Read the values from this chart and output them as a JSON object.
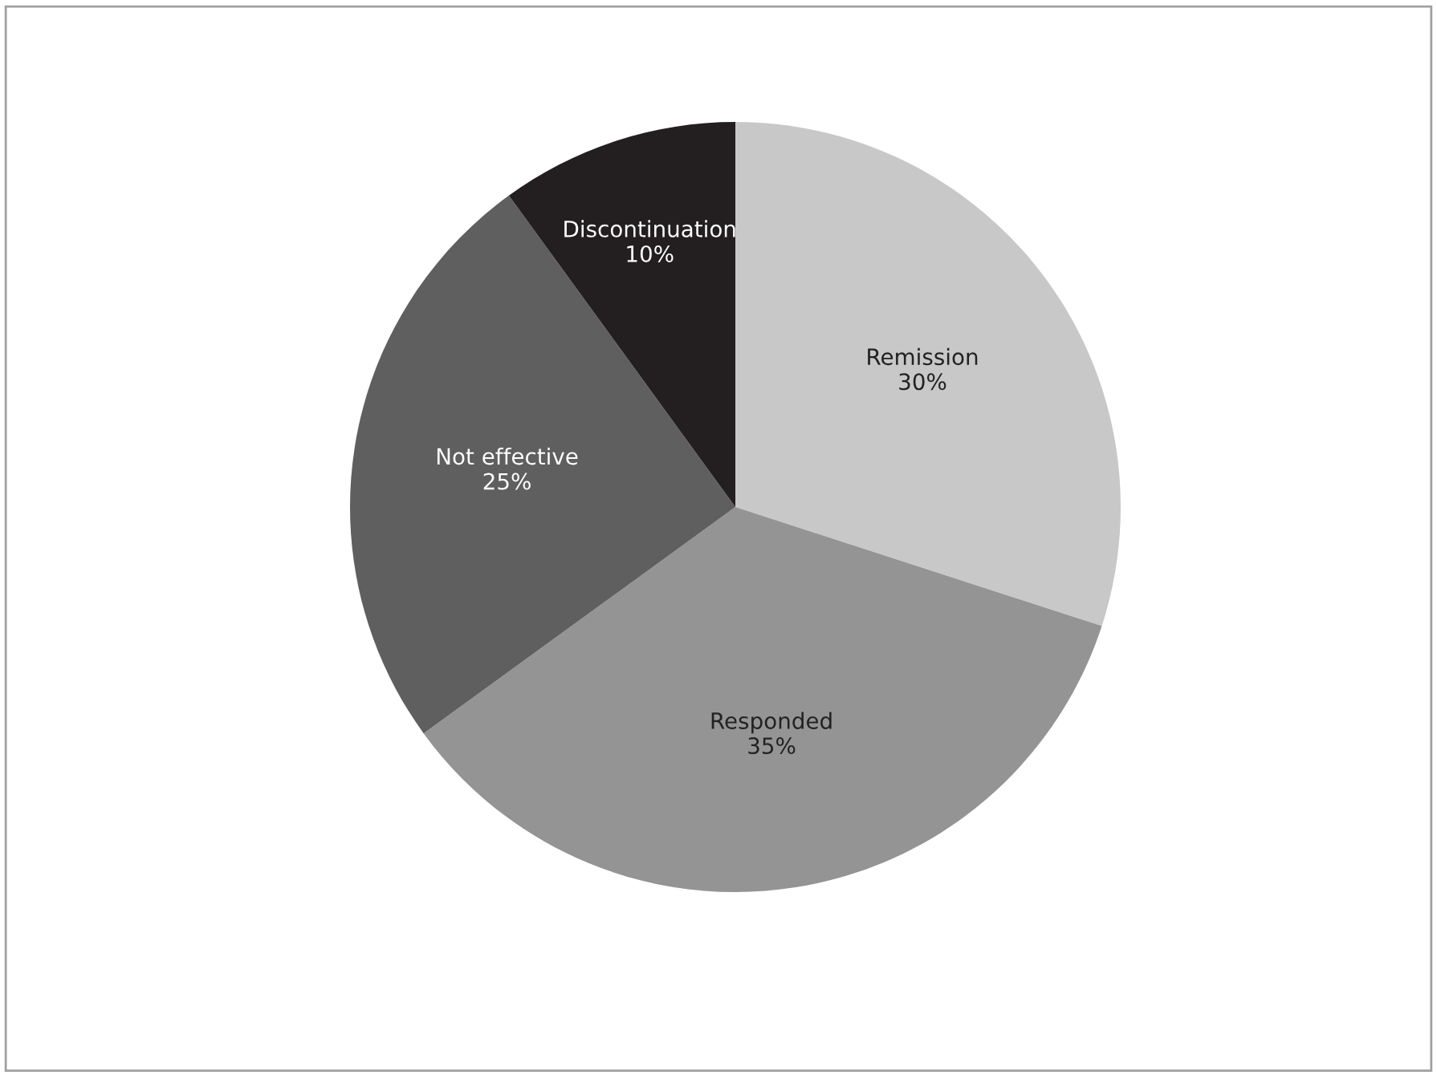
{
  "chart_data": {
    "type": "pie",
    "categories": [
      "Remission",
      "Responded",
      "Not effective",
      "Discontinuation"
    ],
    "values": [
      30,
      35,
      25,
      10
    ],
    "value_labels": [
      "30%",
      "35%",
      "25%",
      "10%"
    ],
    "colors": [
      "#c8c8c8",
      "#949494",
      "#5f5f60",
      "#231f20"
    ]
  }
}
